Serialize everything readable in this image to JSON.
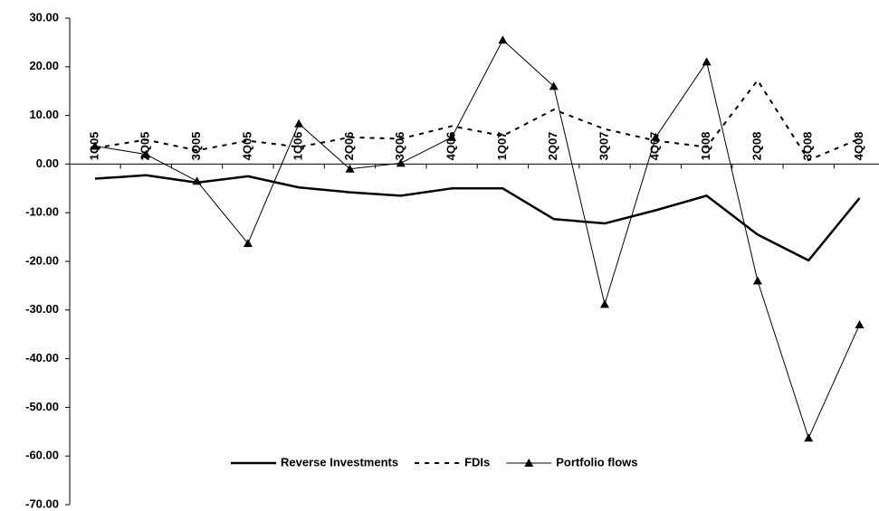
{
  "chart_data": {
    "type": "line",
    "categories": [
      "1Q05",
      "2Q05",
      "3Q05",
      "4Q05",
      "1Q06",
      "2Q06",
      "3Q06",
      "4Q06",
      "1Q07",
      "2Q07",
      "3Q07",
      "4Q07",
      "1Q08",
      "2Q08",
      "3Q08",
      "4Q08"
    ],
    "series": [
      {
        "name": "Reverse Investments",
        "color": "#000000",
        "style": "solid",
        "marker": "none",
        "values": [
          -3,
          -2.3,
          -3.8,
          -2.5,
          -4.8,
          -5.8,
          -6.5,
          -5,
          -5,
          -11.3,
          -12.2,
          -9.5,
          -6.5,
          -14.5,
          -19.8,
          -7
        ]
      },
      {
        "name": "FDIs",
        "color": "#000000",
        "style": "dashed",
        "marker": "none",
        "values": [
          3.3,
          5,
          2.8,
          4.8,
          3.5,
          5.5,
          5.2,
          7.8,
          5.8,
          11.2,
          7.2,
          4.8,
          3.5,
          17.2,
          0.8,
          5.2
        ]
      },
      {
        "name": "Portfolio flows",
        "color": "#000000",
        "style": "thin",
        "marker": "triangle",
        "values": [
          3.7,
          2,
          -3.5,
          -16.3,
          8.3,
          -1,
          0.2,
          5.5,
          25.5,
          16,
          -28.8,
          5.5,
          21,
          -24,
          -56.3,
          -33
        ]
      }
    ],
    "ylim": [
      -70,
      30
    ],
    "yticks": [
      {
        "value": -70,
        "label": "-70.00"
      },
      {
        "value": -60,
        "label": "-60.00"
      },
      {
        "value": -50,
        "label": "-50.00"
      },
      {
        "value": -40,
        "label": "-40.00"
      },
      {
        "value": -30,
        "label": "-30.00"
      },
      {
        "value": -20,
        "label": "-20.00"
      },
      {
        "value": -10,
        "label": "-10.00"
      },
      {
        "value": 0,
        "label": "0.00"
      },
      {
        "value": 10,
        "label": "10.00"
      },
      {
        "value": 20,
        "label": "20.00"
      },
      {
        "value": 30,
        "label": "30.00"
      }
    ],
    "grid": false,
    "legend": "bottom"
  }
}
